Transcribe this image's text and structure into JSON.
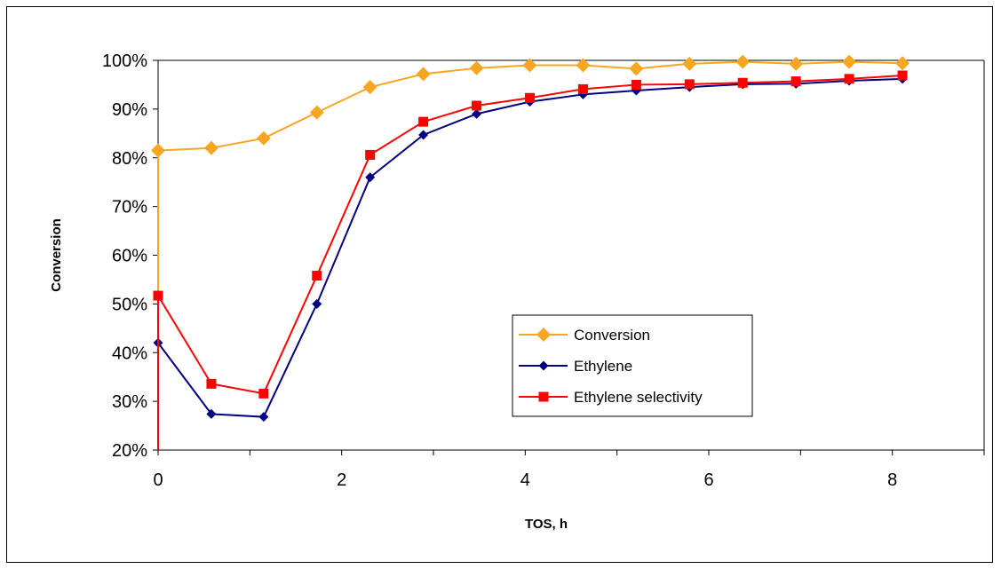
{
  "chart_data": {
    "type": "line",
    "xlabel": "TOS, h",
    "ylabel": "Conversion",
    "xlim": [
      0,
      9
    ],
    "ylim": [
      0.2,
      1.0
    ],
    "x_ticks": [
      "0",
      "2",
      "4",
      "6",
      "8"
    ],
    "x_tick_values": [
      0,
      2,
      4,
      6,
      8
    ],
    "y_ticks": [
      "20%",
      "30%",
      "40%",
      "50%",
      "60%",
      "70%",
      "80%",
      "90%",
      "100%"
    ],
    "y_tick_values": [
      0.2,
      0.3,
      0.4,
      0.5,
      0.6,
      0.7,
      0.8,
      0.9,
      1.0
    ],
    "grid": false,
    "legend_position": "right-center",
    "series": [
      {
        "name": "Conversion",
        "color": "#F6A623",
        "marker": "diamond",
        "x": [
          0,
          0,
          0.58,
          1.15,
          1.73,
          2.31,
          2.89,
          3.47,
          4.05,
          4.63,
          5.21,
          5.79,
          6.37,
          6.95,
          7.53,
          8.11
        ],
        "y": [
          0.2,
          0.815,
          0.82,
          0.84,
          0.893,
          0.945,
          0.972,
          0.984,
          0.99,
          0.99,
          0.983,
          0.993,
          0.997,
          0.993,
          0.997,
          0.994
        ]
      },
      {
        "name": "Ethylene",
        "color": "#000080",
        "marker": "diamond-small",
        "x": [
          0,
          0.58,
          1.15,
          1.73,
          2.31,
          2.89,
          3.47,
          4.05,
          4.63,
          5.21,
          5.79,
          6.37,
          6.95,
          7.53,
          8.11
        ],
        "y": [
          0.42,
          0.274,
          0.268,
          0.5,
          0.76,
          0.847,
          0.89,
          0.915,
          0.93,
          0.938,
          0.945,
          0.951,
          0.952,
          0.958,
          0.962
        ]
      },
      {
        "name": "Ethylene selectivity",
        "color": "#FF0000",
        "marker": "square",
        "x": [
          0,
          0,
          0.58,
          1.15,
          1.73,
          2.31,
          2.89,
          3.47,
          4.05,
          4.63,
          5.21,
          5.79,
          6.37,
          6.95,
          7.53,
          8.11
        ],
        "y": [
          0.2,
          0.517,
          0.336,
          0.316,
          0.558,
          0.806,
          0.874,
          0.907,
          0.923,
          0.941,
          0.95,
          0.951,
          0.954,
          0.957,
          0.962,
          0.969
        ]
      }
    ]
  }
}
